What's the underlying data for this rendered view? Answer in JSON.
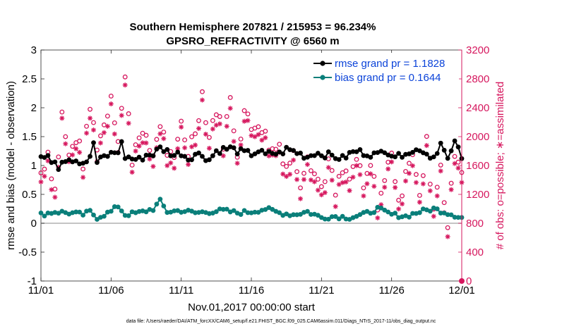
{
  "title_line1": "Southern Hemisphere 207821 / 215953 = 96.234%",
  "title_line2": "GPSRO_REFRACTIVITY @ 6560 m",
  "xlabel": "Nov.01,2017 00:00:00 start",
  "ylabel_left": "rmse and bias (model - observation)",
  "ylabel_right": "# of obs: o=possible; ∗=assimilated",
  "footnote": "data file: /Users/raeder/DAI/ATM_forcXX/CAM6_setup/f.e21.FHIST_BGC.f09_025.CAM6assim.011/Diags_NTrS_2017-11/obs_diag_output.nc",
  "colors": {
    "rmse": "#000000",
    "bias": "#0a7f7a",
    "obs": "#d6175e",
    "legend_text": "#0b43d9",
    "zero_line": "#b0b0b0"
  },
  "chart_data": {
    "type": "line",
    "xlim": [
      0,
      30
    ],
    "x_ticks": [
      0,
      5,
      10,
      15,
      20,
      25,
      30
    ],
    "x_tick_labels": [
      "11/01",
      "11/06",
      "11/11",
      "11/16",
      "11/21",
      "11/26",
      "12/01"
    ],
    "ylim_left": [
      -1,
      3
    ],
    "y_ticks_left": [
      -1,
      -0.5,
      0,
      0.5,
      1,
      1.5,
      2,
      2.5,
      3
    ],
    "y_tick_labels_left": [
      "-1",
      "-0.5",
      "0",
      "0.5",
      "1",
      "1.5",
      "2",
      "2.5",
      "3"
    ],
    "ylim_right": [
      0,
      3200
    ],
    "y_ticks_right": [
      0,
      400,
      800,
      1200,
      1600,
      2000,
      2400,
      2800,
      3200
    ],
    "y_tick_labels_right": [
      "0",
      "400",
      "800",
      "1200",
      "1600",
      "2000",
      "2400",
      "2800",
      "3200"
    ],
    "legend": {
      "position": "top-right",
      "entries": [
        "rmse grand pr = 1.1828",
        "bias grand pr = 0.1644"
      ]
    },
    "grid": false,
    "series": [
      {
        "name": "rmse grand pr = 1.1828",
        "axis": "left",
        "anchors_x": [
          0,
          0.5,
          1,
          1.25,
          1.5,
          2,
          2.5,
          3,
          3.5,
          3.75,
          4,
          4.5,
          5,
          5.5,
          5.75,
          6,
          6.5,
          7,
          7.5,
          8,
          8.5,
          9,
          9.5,
          10,
          10.5,
          11,
          11.5,
          12,
          12.5,
          13,
          13.5,
          14,
          14.5,
          15,
          15.5,
          16,
          16.5,
          17,
          17.5,
          18,
          18.5,
          19,
          19.5,
          20,
          20.5,
          21,
          21.5,
          22,
          22.5,
          23,
          23.5,
          24,
          24.5,
          25,
          25.5,
          26,
          26.5,
          27,
          27.5,
          28,
          28.5,
          29,
          29.25,
          29.5,
          30
        ],
        "anchors_y": [
          1.15,
          1.12,
          1.08,
          0.98,
          1.1,
          1.12,
          1.1,
          1.05,
          1.12,
          1.4,
          1.05,
          1.15,
          1.2,
          1.25,
          1.38,
          1.15,
          1.12,
          1.1,
          1.18,
          1.2,
          1.3,
          1.25,
          1.18,
          1.22,
          1.12,
          1.2,
          1.18,
          1.1,
          1.25,
          1.28,
          1.3,
          1.25,
          1.22,
          1.2,
          1.25,
          1.18,
          1.22,
          1.2,
          1.28,
          1.25,
          1.2,
          1.15,
          1.22,
          1.2,
          1.18,
          1.15,
          1.12,
          1.2,
          1.25,
          1.22,
          1.2,
          1.18,
          1.28,
          1.2,
          1.15,
          1.25,
          1.22,
          1.3,
          1.2,
          1.15,
          1.38,
          1.1,
          1.2,
          1.45,
          1.1
        ],
        "values_4perday_range": [
          0.95,
          1.45
        ]
      },
      {
        "name": "bias grand pr = 0.1644",
        "axis": "left",
        "anchors_x": [
          0,
          1,
          2,
          3,
          3.5,
          4,
          5,
          5.5,
          6,
          7,
          8,
          8.5,
          9,
          10,
          11,
          12,
          13,
          14,
          15,
          16,
          17,
          18,
          19,
          20,
          21,
          22,
          23,
          24,
          25,
          26,
          27,
          28,
          29,
          30
        ],
        "anchors_y": [
          0.15,
          0.2,
          0.18,
          0.15,
          0.2,
          0.1,
          0.2,
          0.3,
          0.15,
          0.18,
          0.25,
          0.38,
          0.2,
          0.22,
          0.18,
          0.2,
          0.22,
          0.18,
          0.2,
          0.25,
          0.18,
          0.15,
          0.2,
          0.1,
          0.12,
          0.1,
          0.15,
          0.25,
          0.15,
          0.12,
          0.2,
          0.25,
          0.18,
          0.1
        ]
      },
      {
        "name": "obs possible",
        "axis": "right",
        "marker": "circle",
        "anchors_x": [
          0,
          0.5,
          1,
          1.5,
          2,
          2.5,
          3,
          3.5,
          4,
          4.5,
          5,
          5.5,
          6,
          6.5,
          7,
          7.5,
          8,
          8.5,
          9,
          9.5,
          10,
          10.5,
          11,
          11.5,
          12,
          12.5,
          13,
          13.5,
          14,
          14.5,
          15,
          15.5,
          16,
          16.5,
          17,
          17.5,
          18,
          18.5,
          19,
          19.5,
          20,
          20.5,
          21,
          21.5,
          22,
          22.5,
          23,
          23.5,
          24,
          24.5,
          25,
          25.5,
          26,
          26.5,
          27,
          27.5,
          28,
          28.5,
          29,
          29.5,
          30
        ],
        "anchors_y": [
          1500,
          1800,
          1250,
          2300,
          1700,
          2000,
          1650,
          2400,
          1900,
          2150,
          2600,
          2000,
          2800,
          1700,
          2100,
          1900,
          1750,
          2200,
          1800,
          1600,
          2200,
          1800,
          2100,
          2600,
          2000,
          2400,
          1950,
          2500,
          1800,
          2350,
          2100,
          2250,
          2000,
          1800,
          1900,
          1600,
          1750,
          1400,
          1800,
          1500,
          1300,
          1650,
          1200,
          1500,
          1400,
          1700,
          1250,
          1600,
          1100,
          1350,
          1850,
          1000,
          1600,
          1800,
          1100,
          1900,
          1000,
          1650,
          750,
          1750,
          1600
        ],
        "extra_points": [
          [
            30,
            0
          ]
        ]
      },
      {
        "name": "obs assimilated",
        "axis": "right",
        "marker": "asterisk"
      }
    ]
  }
}
